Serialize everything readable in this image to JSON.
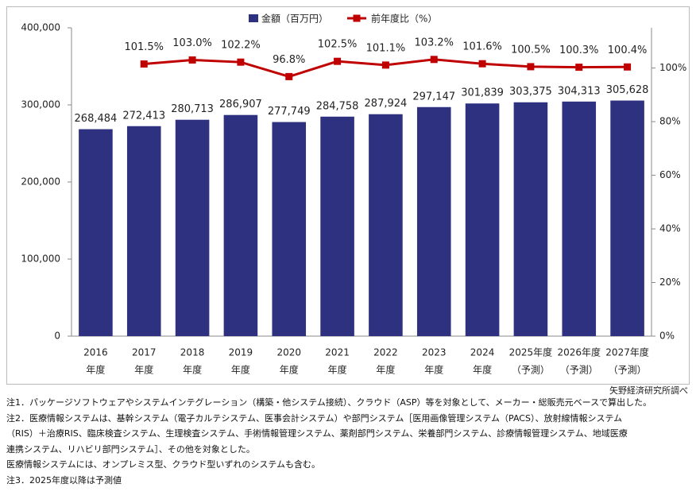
{
  "chart_data": {
    "type": "bar-line",
    "categories": [
      [
        "2016",
        "年度"
      ],
      [
        "2017",
        "年度"
      ],
      [
        "2018",
        "年度"
      ],
      [
        "2019",
        "年度"
      ],
      [
        "2020",
        "年度"
      ],
      [
        "2021",
        "年度"
      ],
      [
        "2022",
        "年度"
      ],
      [
        "2023",
        "年度"
      ],
      [
        "2024",
        "年度"
      ],
      [
        "2025年度",
        "（予測）"
      ],
      [
        "2026年度",
        "（予測）"
      ],
      [
        "2027年度",
        "（予測）"
      ]
    ],
    "series": [
      {
        "name": "金額（百万円）",
        "type": "bar",
        "color": "#2e3180",
        "values": [
          268484,
          272413,
          280713,
          286907,
          277749,
          284758,
          287924,
          297147,
          301839,
          303375,
          304313,
          305628
        ],
        "value_labels": [
          "268,484",
          "272,413",
          "280,713",
          "286,907",
          "277,749",
          "284,758",
          "287,924",
          "297,147",
          "301,839",
          "303,375",
          "304,313",
          "305,628"
        ]
      },
      {
        "name": "前年度比（%）",
        "type": "line",
        "axis": "y2",
        "color": "#c00000",
        "values": [
          null,
          101.5,
          103.0,
          102.2,
          96.8,
          102.5,
          101.1,
          103.2,
          101.6,
          100.5,
          100.3,
          100.4
        ],
        "value_labels": [
          null,
          "101.5%",
          "103.0%",
          "102.2%",
          "96.8%",
          "102.5%",
          "101.1%",
          "103.2%",
          "101.6%",
          "100.5%",
          "100.3%",
          "100.4%"
        ]
      }
    ],
    "ylim": [
      0,
      400000
    ],
    "yticks": [
      0,
      {
        "value": 100000,
        "label": "100,000"
      },
      {
        "value": 200000,
        "label": "200,000"
      },
      {
        "value": 300000,
        "label": "300,000"
      },
      {
        "value": 400000,
        "label": "400,000"
      }
    ],
    "y2lim": [
      0,
      115
    ],
    "y2ticks": [
      {
        "value": 0,
        "label": "0%"
      },
      {
        "value": 20,
        "label": "20%"
      },
      {
        "value": 40,
        "label": "40%"
      },
      {
        "value": 60,
        "label": "60%"
      },
      {
        "value": 80,
        "label": "80%"
      },
      {
        "value": 100,
        "label": "100%"
      }
    ],
    "legend": "top",
    "grid": false
  },
  "source": "矢野経済研究所調べ",
  "notes": [
    "注1．パッケージソフトウェアやシステムインテグレーション（構築・他システム接続）、クラウド（ASP）等を対象として、メーカー・総販売元ベースで算出した。",
    "注2．医療情報システムは、基幹システム（電子カルテシステム、医事会計システム）や部門システム［医用画像管理システム（PACS）、放射線情報システム",
    "（RIS）＋治療RIS、臨床検査システム、生理検査システム、手術情報管理システム、薬剤部門システム、栄養部門システム、診療情報管理システム、地域医療",
    "連携システム、リハビリ部門システム］、その他を対象とした。",
    "医療情報システムには、オンプレミス型、クラウド型いずれのシステムも含む。",
    "注3．2025年度以降は予測値"
  ]
}
